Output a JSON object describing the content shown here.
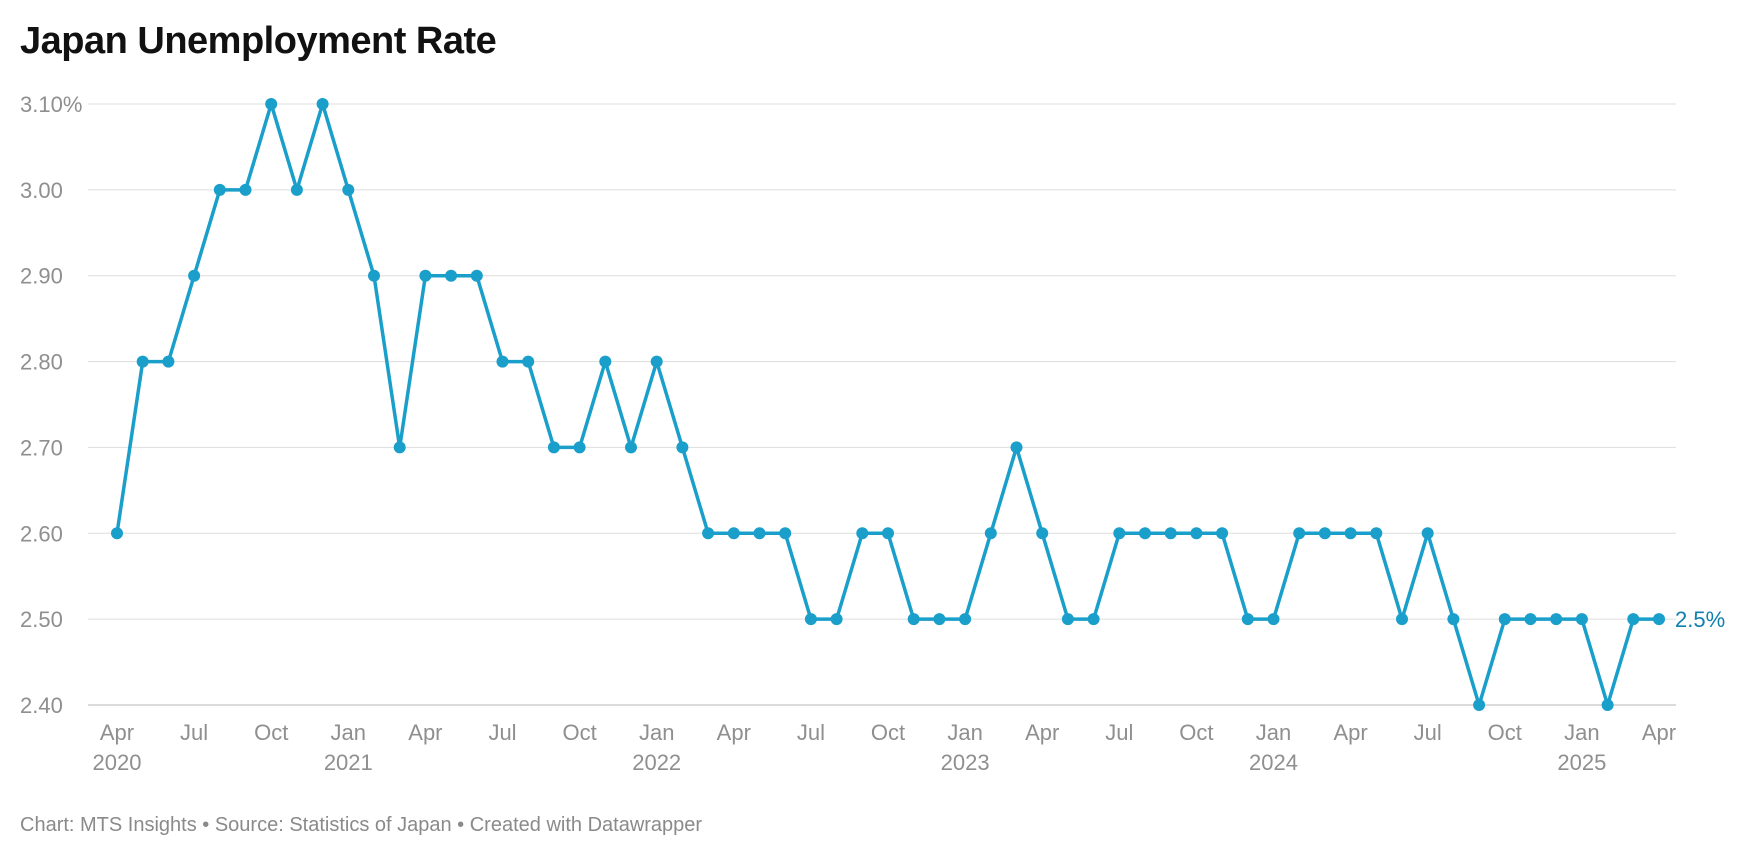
{
  "chart_data": {
    "type": "line",
    "title": "Japan Unemployment Rate",
    "xlabel": "",
    "ylabel": "",
    "ylim": [
      2.4,
      3.1
    ],
    "y_ticks": [
      2.4,
      2.5,
      2.6,
      2.7,
      2.8,
      2.9,
      3.0,
      3.1
    ],
    "y_tick_labels": [
      "2.40",
      "2.50",
      "2.60",
      "2.70",
      "2.80",
      "2.90",
      "3.00",
      "3.10%"
    ],
    "x_ticks": [
      {
        "month": "Apr",
        "year": "2020",
        "index": 0
      },
      {
        "month": "Jul",
        "year": "",
        "index": 3
      },
      {
        "month": "Oct",
        "year": "",
        "index": 6
      },
      {
        "month": "Jan",
        "year": "2021",
        "index": 9
      },
      {
        "month": "Apr",
        "year": "",
        "index": 12
      },
      {
        "month": "Jul",
        "year": "",
        "index": 15
      },
      {
        "month": "Oct",
        "year": "",
        "index": 18
      },
      {
        "month": "Jan",
        "year": "2022",
        "index": 21
      },
      {
        "month": "Apr",
        "year": "",
        "index": 24
      },
      {
        "month": "Jul",
        "year": "",
        "index": 27
      },
      {
        "month": "Oct",
        "year": "",
        "index": 30
      },
      {
        "month": "Jan",
        "year": "2023",
        "index": 33
      },
      {
        "month": "Apr",
        "year": "",
        "index": 36
      },
      {
        "month": "Jul",
        "year": "",
        "index": 39
      },
      {
        "month": "Oct",
        "year": "",
        "index": 42
      },
      {
        "month": "Jan",
        "year": "2024",
        "index": 45
      },
      {
        "month": "Apr",
        "year": "",
        "index": 48
      },
      {
        "month": "Jul",
        "year": "",
        "index": 51
      },
      {
        "month": "Oct",
        "year": "",
        "index": 54
      },
      {
        "month": "Jan",
        "year": "2025",
        "index": 57
      },
      {
        "month": "Apr",
        "year": "",
        "index": 60
      }
    ],
    "x": [
      "2020-04",
      "2020-05",
      "2020-06",
      "2020-07",
      "2020-08",
      "2020-09",
      "2020-10",
      "2020-11",
      "2020-12",
      "2021-01",
      "2021-02",
      "2021-03",
      "2021-04",
      "2021-05",
      "2021-06",
      "2021-07",
      "2021-08",
      "2021-09",
      "2021-10",
      "2021-11",
      "2021-12",
      "2022-01",
      "2022-02",
      "2022-03",
      "2022-04",
      "2022-05",
      "2022-06",
      "2022-07",
      "2022-08",
      "2022-09",
      "2022-10",
      "2022-11",
      "2022-12",
      "2023-01",
      "2023-02",
      "2023-03",
      "2023-04",
      "2023-05",
      "2023-06",
      "2023-07",
      "2023-08",
      "2023-09",
      "2023-10",
      "2023-11",
      "2023-12",
      "2024-01",
      "2024-02",
      "2024-03",
      "2024-04",
      "2024-05",
      "2024-06",
      "2024-07",
      "2024-08",
      "2024-09",
      "2024-10",
      "2024-11",
      "2024-12",
      "2025-01",
      "2025-02",
      "2025-03",
      "2025-04"
    ],
    "series": [
      {
        "values": [
          2.6,
          2.8,
          2.8,
          2.9,
          3.0,
          3.0,
          3.1,
          3.0,
          3.1,
          3.0,
          2.9,
          2.7,
          2.9,
          2.9,
          2.9,
          2.8,
          2.8,
          2.7,
          2.7,
          2.8,
          2.7,
          2.8,
          2.7,
          2.6,
          2.6,
          2.6,
          2.6,
          2.5,
          2.5,
          2.6,
          2.6,
          2.5,
          2.5,
          2.5,
          2.6,
          2.7,
          2.6,
          2.5,
          2.5,
          2.6,
          2.6,
          2.6,
          2.6,
          2.6,
          2.5,
          2.5,
          2.6,
          2.6,
          2.6,
          2.6,
          2.5,
          2.6,
          2.5,
          2.4,
          2.5,
          2.5,
          2.5,
          2.5,
          2.4,
          2.5,
          2.5
        ],
        "color": "#1a9fcb"
      }
    ],
    "end_label": "2.5%",
    "end_label_color": "#0f7fae",
    "grid": true,
    "gridline_color": "#dddddd",
    "axis_line_color": "#cfcfcf"
  },
  "footer": {
    "text": "Chart: MTS Insights • Source: Statistics of Japan • Created with Datawrapper"
  }
}
